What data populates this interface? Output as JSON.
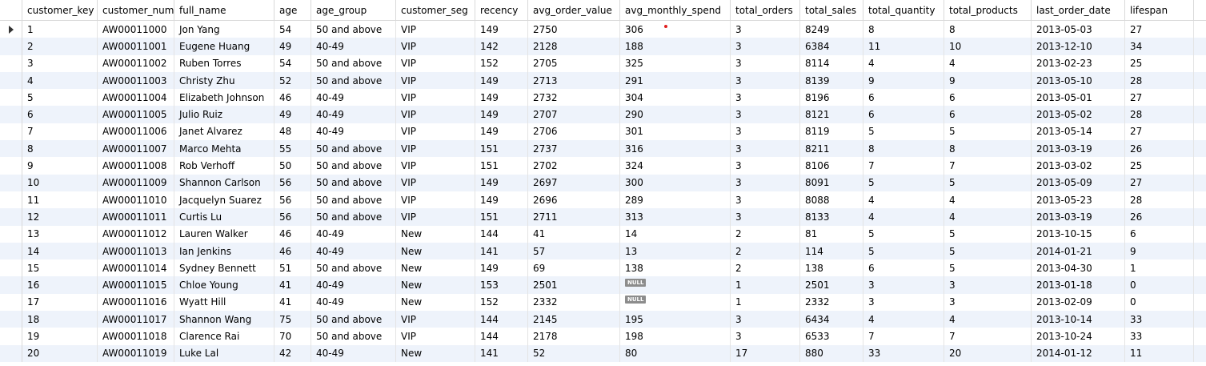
{
  "columns": [
    "customer_key",
    "customer_num",
    "full_name",
    "age",
    "age_group",
    "customer_seg",
    "recency",
    "avg_order_value",
    "avg_monthly_spend",
    "total_orders",
    "total_sales",
    "total_quantity",
    "total_products",
    "last_order_date",
    "lifespan"
  ],
  "column_headers_displayed": [
    "customer_key",
    "customer_num",
    "full_name",
    "age",
    "age_group",
    "customer_seg",
    "recency",
    "avg_order_value",
    "avg_monthly_spend",
    "total_orders",
    "total_sales",
    "total_quantity",
    "total_products",
    "last_order_date",
    "lifespan"
  ],
  "null_label": "NULL",
  "rows": [
    [
      "1",
      "AW00011000",
      "Jon Yang",
      "54",
      "50 and above",
      "VIP",
      "149",
      "2750",
      "306",
      "3",
      "8249",
      "8",
      "8",
      "2013-05-03",
      "27"
    ],
    [
      "2",
      "AW00011001",
      "Eugene Huang",
      "49",
      "40-49",
      "VIP",
      "142",
      "2128",
      "188",
      "3",
      "6384",
      "11",
      "10",
      "2013-12-10",
      "34"
    ],
    [
      "3",
      "AW00011002",
      "Ruben Torres",
      "54",
      "50 and above",
      "VIP",
      "152",
      "2705",
      "325",
      "3",
      "8114",
      "4",
      "4",
      "2013-02-23",
      "25"
    ],
    [
      "4",
      "AW00011003",
      "Christy Zhu",
      "52",
      "50 and above",
      "VIP",
      "149",
      "2713",
      "291",
      "3",
      "8139",
      "9",
      "9",
      "2013-05-10",
      "28"
    ],
    [
      "5",
      "AW00011004",
      "Elizabeth Johnson",
      "46",
      "40-49",
      "VIP",
      "149",
      "2732",
      "304",
      "3",
      "8196",
      "6",
      "6",
      "2013-05-01",
      "27"
    ],
    [
      "6",
      "AW00011005",
      "Julio Ruiz",
      "49",
      "40-49",
      "VIP",
      "149",
      "2707",
      "290",
      "3",
      "8121",
      "6",
      "6",
      "2013-05-02",
      "28"
    ],
    [
      "7",
      "AW00011006",
      "Janet Alvarez",
      "48",
      "40-49",
      "VIP",
      "149",
      "2706",
      "301",
      "3",
      "8119",
      "5",
      "5",
      "2013-05-14",
      "27"
    ],
    [
      "8",
      "AW00011007",
      "Marco Mehta",
      "55",
      "50 and above",
      "VIP",
      "151",
      "2737",
      "316",
      "3",
      "8211",
      "8",
      "8",
      "2013-03-19",
      "26"
    ],
    [
      "9",
      "AW00011008",
      "Rob Verhoff",
      "50",
      "50 and above",
      "VIP",
      "151",
      "2702",
      "324",
      "3",
      "8106",
      "7",
      "7",
      "2013-03-02",
      "25"
    ],
    [
      "10",
      "AW00011009",
      "Shannon Carlson",
      "56",
      "50 and above",
      "VIP",
      "149",
      "2697",
      "300",
      "3",
      "8091",
      "5",
      "5",
      "2013-05-09",
      "27"
    ],
    [
      "11",
      "AW00011010",
      "Jacquelyn Suarez",
      "56",
      "50 and above",
      "VIP",
      "149",
      "2696",
      "289",
      "3",
      "8088",
      "4",
      "4",
      "2013-05-23",
      "28"
    ],
    [
      "12",
      "AW00011011",
      "Curtis Lu",
      "56",
      "50 and above",
      "VIP",
      "151",
      "2711",
      "313",
      "3",
      "8133",
      "4",
      "4",
      "2013-03-19",
      "26"
    ],
    [
      "13",
      "AW00011012",
      "Lauren Walker",
      "46",
      "40-49",
      "New",
      "144",
      "41",
      "14",
      "2",
      "81",
      "5",
      "5",
      "2013-10-15",
      "6"
    ],
    [
      "14",
      "AW00011013",
      "Ian Jenkins",
      "46",
      "40-49",
      "New",
      "141",
      "57",
      "13",
      "2",
      "114",
      "5",
      "5",
      "2014-01-21",
      "9"
    ],
    [
      "15",
      "AW00011014",
      "Sydney Bennett",
      "51",
      "50 and above",
      "New",
      "149",
      "69",
      "138",
      "2",
      "138",
      "6",
      "5",
      "2013-04-30",
      "1"
    ],
    [
      "16",
      "AW00011015",
      "Chloe Young",
      "41",
      "40-49",
      "New",
      "153",
      "2501",
      null,
      "1",
      "2501",
      "3",
      "3",
      "2013-01-18",
      "0"
    ],
    [
      "17",
      "AW00011016",
      "Wyatt Hill",
      "41",
      "40-49",
      "New",
      "152",
      "2332",
      null,
      "1",
      "2332",
      "3",
      "3",
      "2013-02-09",
      "0"
    ],
    [
      "18",
      "AW00011017",
      "Shannon Wang",
      "75",
      "50 and above",
      "VIP",
      "144",
      "2145",
      "195",
      "3",
      "6434",
      "4",
      "4",
      "2013-10-14",
      "33"
    ],
    [
      "19",
      "AW00011018",
      "Clarence Rai",
      "70",
      "50 and above",
      "VIP",
      "144",
      "2178",
      "198",
      "3",
      "6533",
      "7",
      "7",
      "2013-10-24",
      "33"
    ],
    [
      "20",
      "AW00011019",
      "Luke Lal",
      "42",
      "40-49",
      "New",
      "141",
      "52",
      "80",
      "17",
      "880",
      "33",
      "20",
      "2014-01-12",
      "11"
    ]
  ]
}
